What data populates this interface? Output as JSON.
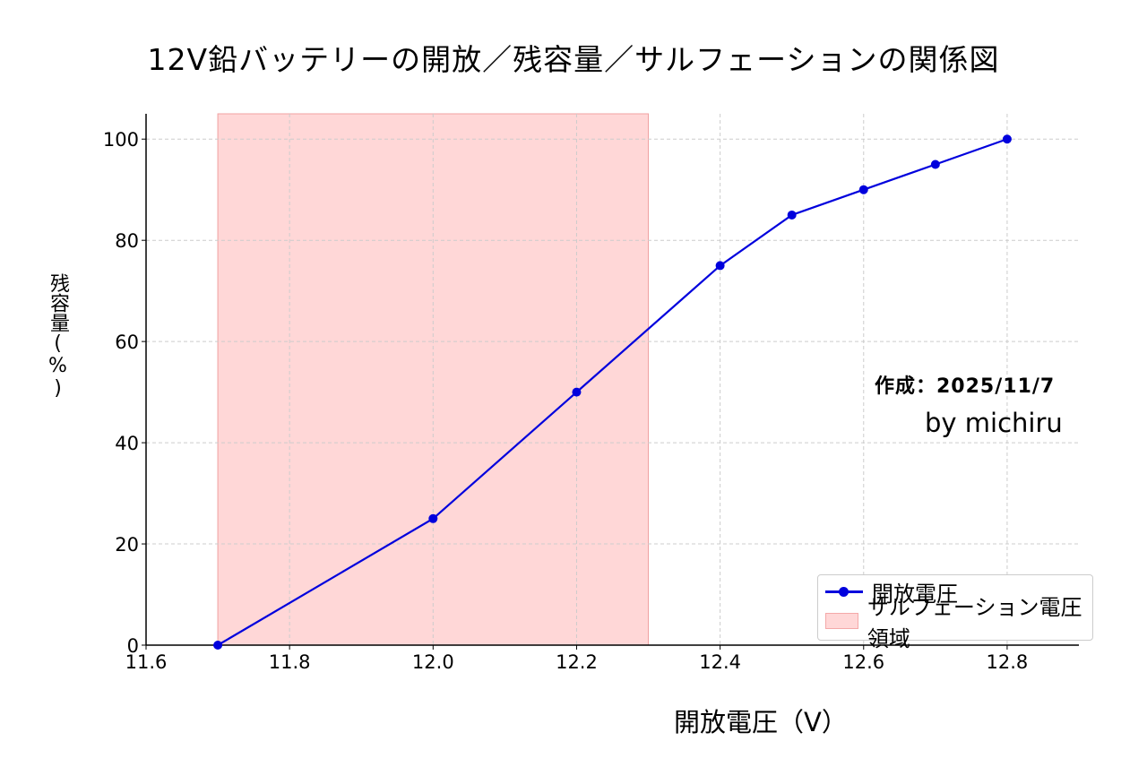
{
  "title": "12V鉛バッテリーの開放／残容量／サルフェーションの関係図",
  "annotations": {
    "date": "作成：2025/11/7",
    "author": "by  michiru"
  },
  "colors": {
    "line": "#0000dd",
    "area_fill": "#ffb0b0",
    "grid": "#cccccc",
    "axis": "#000000"
  },
  "chart_data": {
    "type": "line",
    "title": "12V鉛バッテリーの開放／残容量／サルフェーションの関係図",
    "xlabel": "開放電圧（V）",
    "ylabel": "残容量(%)",
    "xlim": [
      11.6,
      12.9
    ],
    "ylim": [
      0,
      105
    ],
    "xticks": [
      11.6,
      11.8,
      12.0,
      12.2,
      12.4,
      12.6,
      12.8
    ],
    "xtick_labels": [
      "11.6",
      "11.8",
      "12.0",
      "12.2",
      "12.4",
      "12.6",
      "12.8"
    ],
    "yticks": [
      0,
      20,
      40,
      60,
      80,
      100
    ],
    "ytick_labels": [
      "0",
      "20",
      "40",
      "60",
      "80",
      "100"
    ],
    "grid": true,
    "grid_style": "dashed",
    "legend_position": "bottom-right",
    "series": [
      {
        "name": "開放電圧",
        "x": [
          11.7,
          12.0,
          12.2,
          12.4,
          12.5,
          12.6,
          12.7,
          12.8
        ],
        "y": [
          0,
          25,
          50,
          75,
          85,
          90,
          95,
          100
        ]
      }
    ],
    "shaded_region": {
      "name": "サルフェーション電圧領域",
      "x_start": 11.7,
      "x_end": 12.3
    }
  }
}
